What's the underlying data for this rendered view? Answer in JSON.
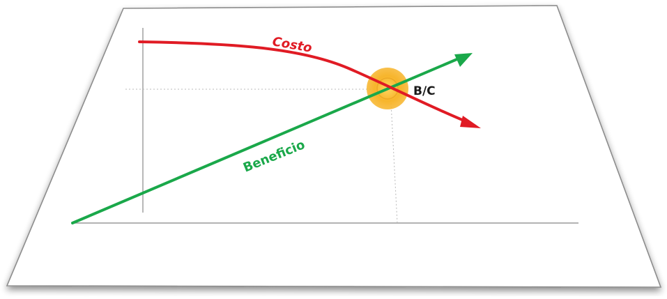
{
  "diagram": {
    "labels": {
      "cost": "Costo",
      "benefit": "Beneficio",
      "intersection": "B/C"
    },
    "colors": {
      "cost": "#e01b24",
      "benefit": "#1aa84a",
      "highlight": "#f7b52c",
      "axis": "#9a9a9a",
      "guide": "#b9b9b9",
      "intersection_text": "#1a1a1a"
    }
  }
}
